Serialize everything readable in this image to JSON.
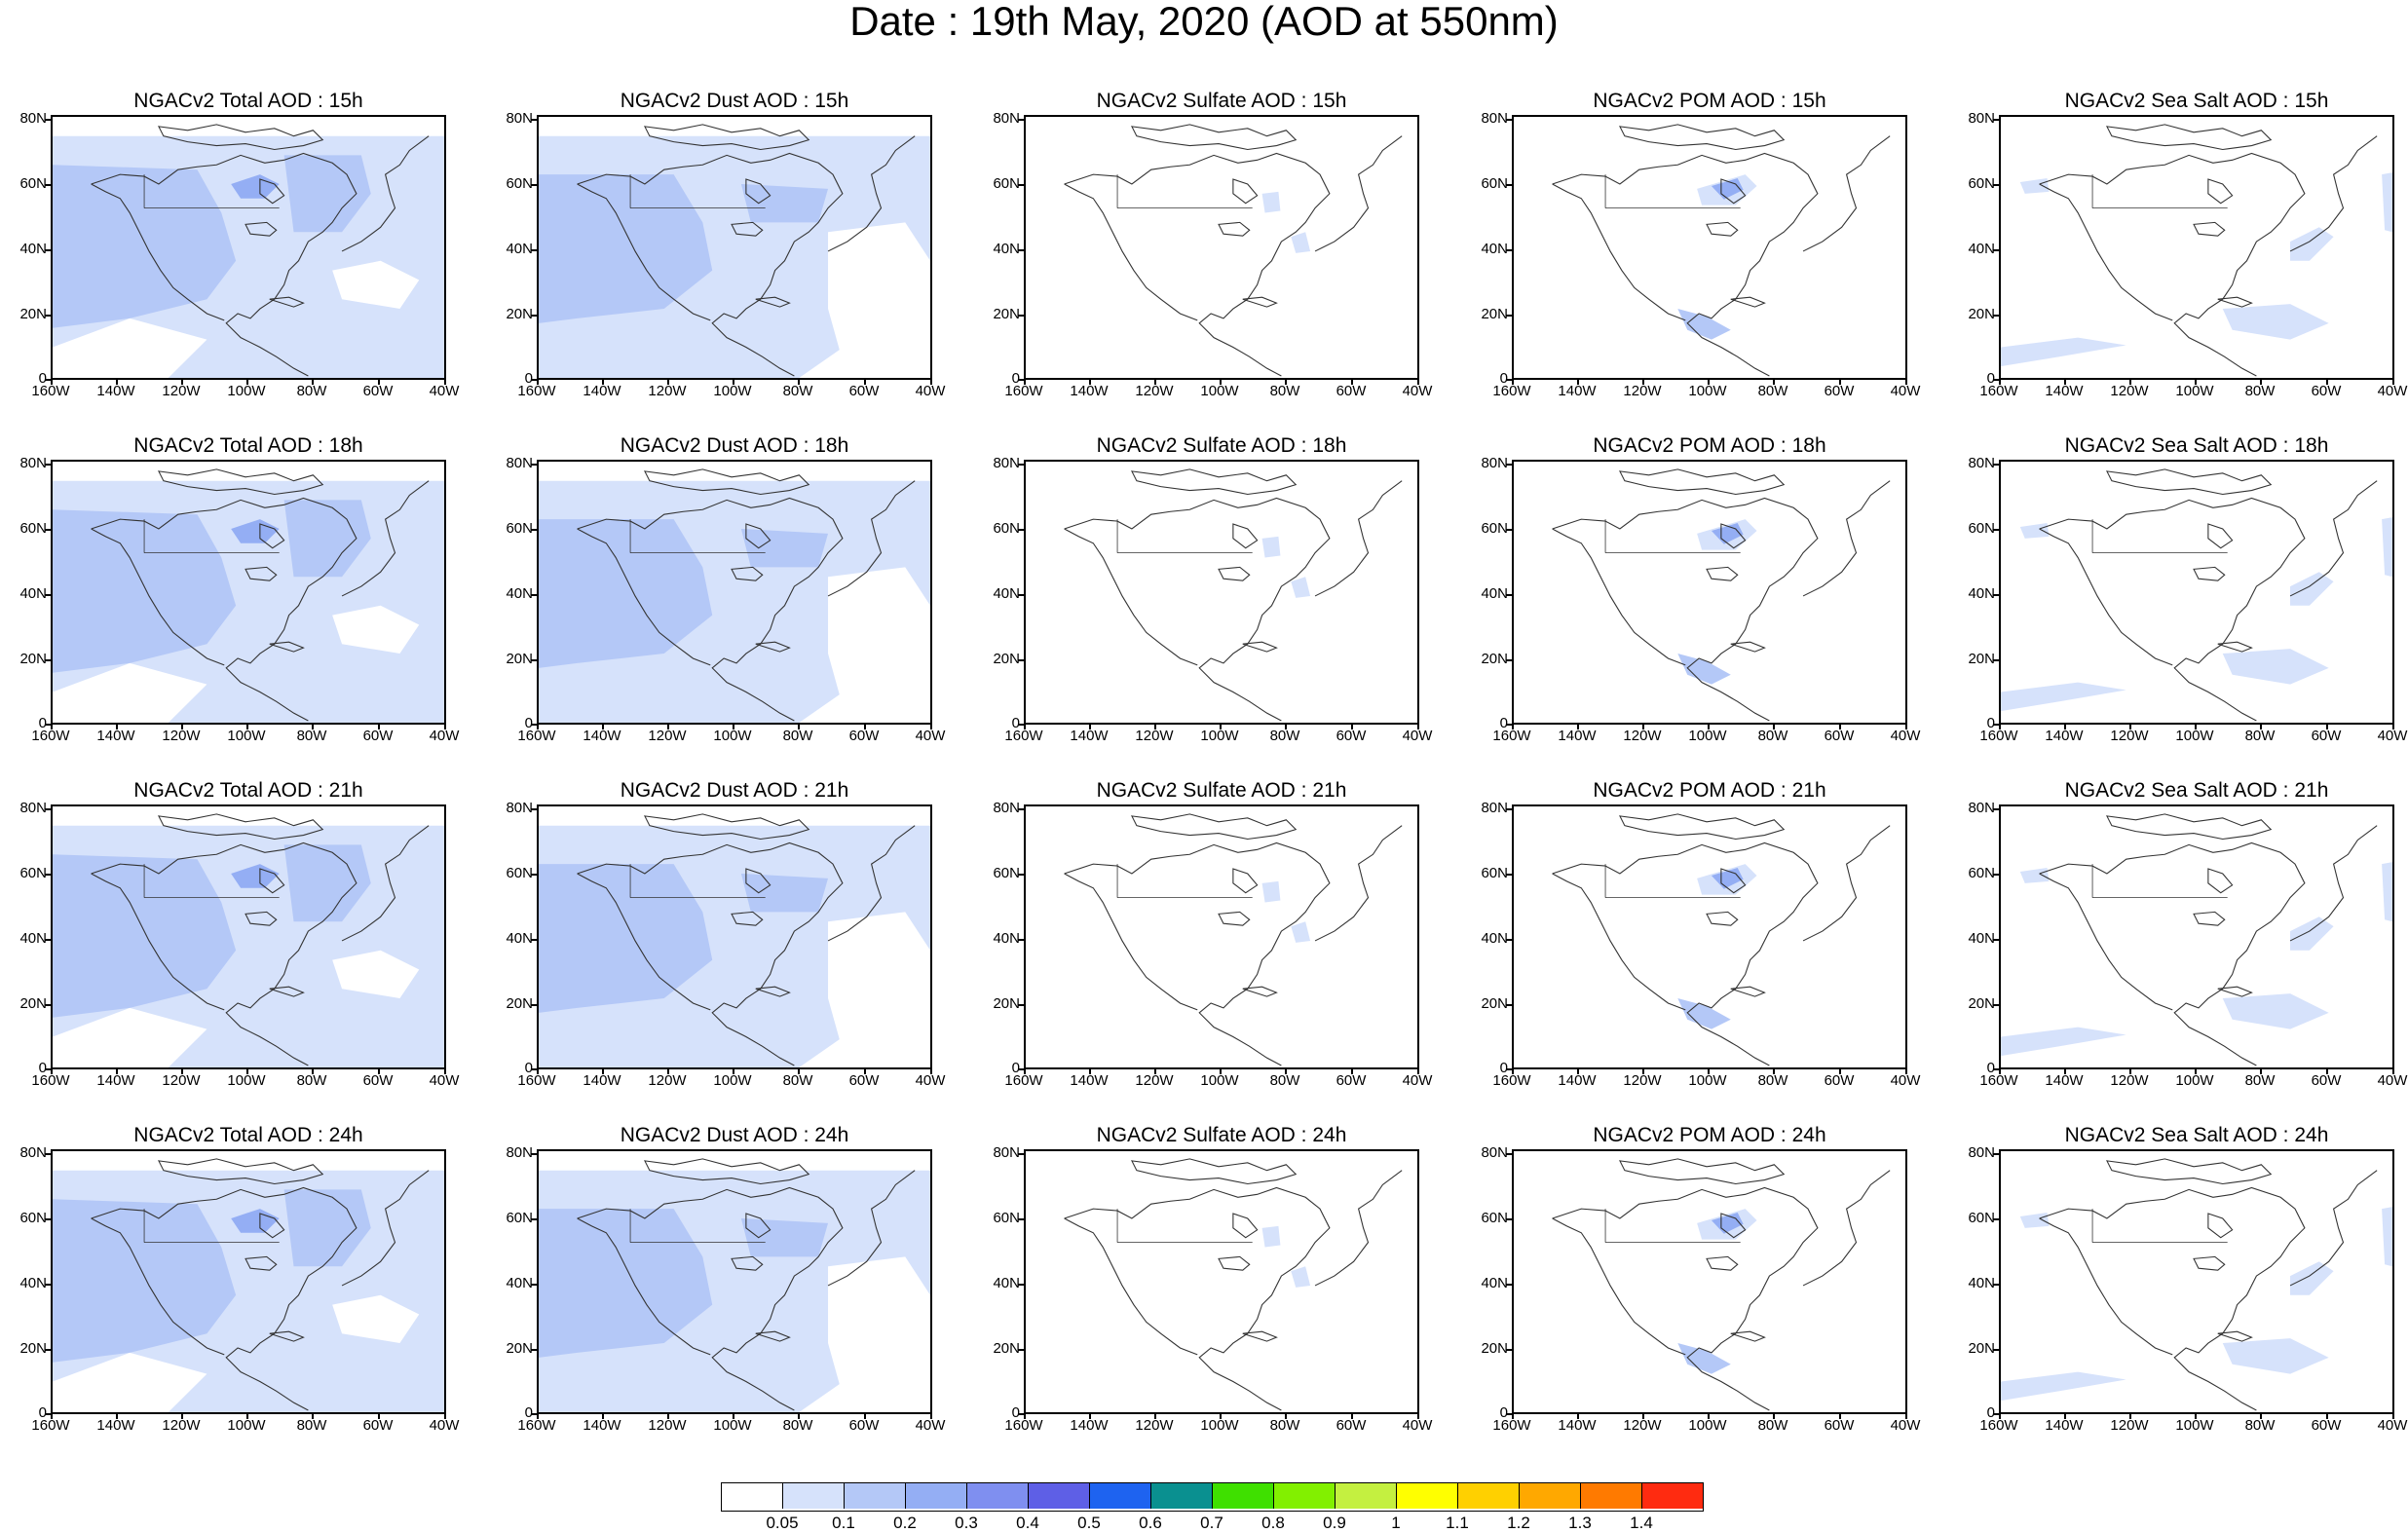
{
  "title": "Date : 19th May, 2020 (AOD at 550nm)",
  "map": {
    "lat_labels": [
      "80N",
      "60N",
      "40N",
      "20N",
      "0"
    ],
    "lon_labels": [
      "160W",
      "140W",
      "120W",
      "100W",
      "80W",
      "60W",
      "40W"
    ]
  },
  "rows": [
    "15h",
    "18h",
    "21h",
    "24h"
  ],
  "columns": [
    {
      "key": "total",
      "titles": [
        "NGACv2 Total AOD : 15h",
        "NGACv2 Total AOD : 18h",
        "NGACv2 Total AOD : 21h",
        "NGACv2 Total AOD : 24h"
      ]
    },
    {
      "key": "dust",
      "titles": [
        "NGACv2 Dust AOD : 15h",
        "NGACv2 Dust AOD : 18h",
        "NGACv2 Dust AOD : 21h",
        "NGACv2 Dust AOD : 24h"
      ]
    },
    {
      "key": "sulfate",
      "titles": [
        "NGACv2 Sulfate AOD : 15h",
        "NGACv2 Sulfate AOD : 18h",
        "NGACv2 Sulfate AOD : 21h",
        "NGACv2 Sulfate AOD : 24h"
      ]
    },
    {
      "key": "pom",
      "titles": [
        "NGACv2 POM AOD : 15h",
        "NGACv2 POM AOD : 18h",
        "NGACv2 POM AOD : 21h",
        "NGACv2 POM AOD : 24h"
      ]
    },
    {
      "key": "seasalt",
      "titles": [
        "NGACv2 Sea Salt AOD : 15h",
        "NGACv2 Sea Salt AOD : 18h",
        "NGACv2 Sea Salt AOD : 21h",
        "NGACv2 Sea Salt  AOD : 24h"
      ]
    }
  ],
  "colorbar": {
    "labels": [
      "0.05",
      "0.1",
      "0.2",
      "0.3",
      "0.4",
      "0.5",
      "0.6",
      "0.7",
      "0.8",
      "0.9",
      "1",
      "1.1",
      "1.2",
      "1.3",
      "1.4"
    ],
    "colors": [
      "#ffffff",
      "#d6e2fb",
      "#b4c8f7",
      "#94aef4",
      "#7f8ff0",
      "#5e5fe6",
      "#1e63f0",
      "#0a9090",
      "#3fe000",
      "#82f000",
      "#c4f040",
      "#ffff00",
      "#ffd000",
      "#ffa800",
      "#ff7a00",
      "#ff2b10"
    ]
  }
}
